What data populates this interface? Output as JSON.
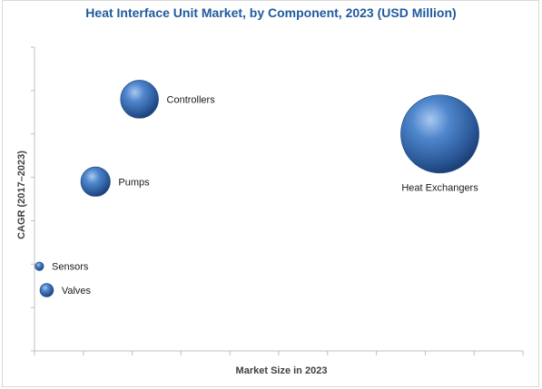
{
  "chart_data": {
    "type": "bubble",
    "title": "Heat Interface Unit Market, by Component, 2023 (USD Million)",
    "xlabel": "Market Size in 2023",
    "ylabel": "CAGR (2017–2023)",
    "xlim": [
      0,
      10
    ],
    "ylim": [
      0,
      7
    ],
    "grid": false,
    "legend": "none",
    "bubble_color": "#3a6fb5",
    "points": [
      {
        "label": "Controllers",
        "x": 2.15,
        "y": 5.8,
        "size": 2.0
      },
      {
        "label": "Heat Exchangers",
        "x": 8.3,
        "y": 5.0,
        "size": 8.5
      },
      {
        "label": "Pumps",
        "x": 1.25,
        "y": 3.9,
        "size": 1.2
      },
      {
        "label": "Sensors",
        "x": 0.1,
        "y": 1.95,
        "size": 0.1
      },
      {
        "label": "Valves",
        "x": 0.25,
        "y": 1.4,
        "size": 0.25
      }
    ]
  }
}
